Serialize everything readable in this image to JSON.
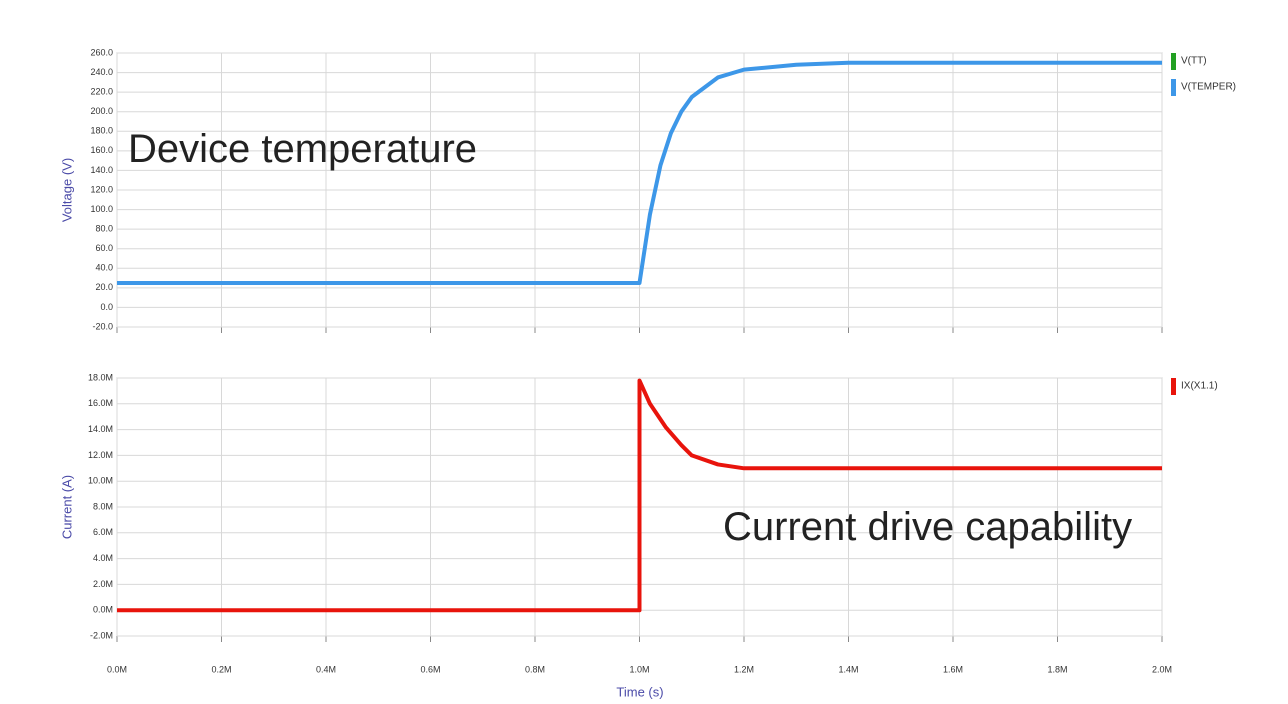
{
  "chart_data": [
    {
      "type": "line",
      "ylabel": "Voltage (V)",
      "annotation": "Device temperature",
      "ylim": [
        -20,
        260
      ],
      "yticks": [
        {
          "value": -20,
          "label": "-20.0"
        },
        {
          "value": 0,
          "label": "0.0"
        },
        {
          "value": 20,
          "label": "20.0"
        },
        {
          "value": 40,
          "label": "40.0"
        },
        {
          "value": 60,
          "label": "60.0"
        },
        {
          "value": 80,
          "label": "80.0"
        },
        {
          "value": 100,
          "label": "100.0"
        },
        {
          "value": 120,
          "label": "120.0"
        },
        {
          "value": 140,
          "label": "140.0"
        },
        {
          "value": 160,
          "label": "160.0"
        },
        {
          "value": 180,
          "label": "180.0"
        },
        {
          "value": 200,
          "label": "200.0"
        },
        {
          "value": 220,
          "label": "220.0"
        },
        {
          "value": 240,
          "label": "240.0"
        },
        {
          "value": 260,
          "label": "260.0"
        }
      ],
      "grid": true,
      "series": [
        {
          "name": "V(TT)",
          "color": "#22a022",
          "x": [
            0,
            2.0
          ],
          "values": [
            null,
            null
          ]
        },
        {
          "name": "V(TEMPER)",
          "color": "#3d97e8",
          "x": [
            0,
            0.2,
            0.4,
            0.6,
            0.8,
            1.0,
            1.02,
            1.04,
            1.06,
            1.08,
            1.1,
            1.15,
            1.2,
            1.3,
            1.4,
            1.6,
            2.0
          ],
          "values": [
            25,
            25,
            25,
            25,
            25,
            25,
            95,
            145,
            178,
            200,
            215,
            235,
            243,
            248,
            250,
            250,
            250
          ]
        }
      ]
    },
    {
      "type": "line",
      "ylabel": "Current (A)",
      "xlabel": "Time (s)",
      "annotation": "Current drive capability",
      "xlim": [
        0,
        2.0
      ],
      "xticks": [
        {
          "value": 0,
          "label": "0.0M"
        },
        {
          "value": 0.2,
          "label": "0.2M"
        },
        {
          "value": 0.4,
          "label": "0.4M"
        },
        {
          "value": 0.6,
          "label": "0.6M"
        },
        {
          "value": 0.8,
          "label": "0.8M"
        },
        {
          "value": 1.0,
          "label": "1.0M"
        },
        {
          "value": 1.2,
          "label": "1.2M"
        },
        {
          "value": 1.4,
          "label": "1.4M"
        },
        {
          "value": 1.6,
          "label": "1.6M"
        },
        {
          "value": 1.8,
          "label": "1.8M"
        },
        {
          "value": 2.0,
          "label": "2.0M"
        }
      ],
      "ylim": [
        -2,
        18
      ],
      "yticks": [
        {
          "value": -2,
          "label": "-2.0M"
        },
        {
          "value": 0,
          "label": "0.0M"
        },
        {
          "value": 2,
          "label": "2.0M"
        },
        {
          "value": 4,
          "label": "4.0M"
        },
        {
          "value": 6,
          "label": "6.0M"
        },
        {
          "value": 8,
          "label": "8.0M"
        },
        {
          "value": 10,
          "label": "10.0M"
        },
        {
          "value": 12,
          "label": "12.0M"
        },
        {
          "value": 14,
          "label": "14.0M"
        },
        {
          "value": 16,
          "label": "16.0M"
        },
        {
          "value": 18,
          "label": "18.0M"
        }
      ],
      "grid": true,
      "series": [
        {
          "name": "IX(X1.1)",
          "color": "#e8140c",
          "x": [
            0,
            1.0,
            1.0,
            1.02,
            1.05,
            1.08,
            1.1,
            1.15,
            1.2,
            1.3,
            2.0
          ],
          "values": [
            0,
            0,
            17.8,
            16,
            14.2,
            12.8,
            12.0,
            11.3,
            11.0,
            11.0,
            11.0
          ]
        }
      ]
    }
  ]
}
